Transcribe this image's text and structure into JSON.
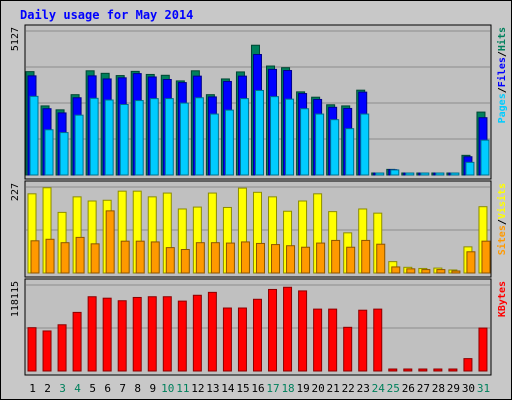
{
  "chart_data": {
    "type": "bar",
    "title": "Daily usage for May 2014",
    "categories": [
      "1",
      "2",
      "3",
      "4",
      "5",
      "6",
      "7",
      "8",
      "9",
      "10",
      "11",
      "12",
      "13",
      "14",
      "15",
      "16",
      "17",
      "18",
      "19",
      "20",
      "21",
      "22",
      "23",
      "24",
      "25",
      "26",
      "27",
      "28",
      "29",
      "30",
      "31"
    ],
    "weekend_days": [
      "3",
      "4",
      "10",
      "11",
      "17",
      "18",
      "24",
      "25",
      "31"
    ],
    "panels": [
      {
        "id": "hits",
        "ytick": "5127",
        "ymax": 5127,
        "ylabel_parts": [
          "Pages",
          "Files",
          "Hits"
        ],
        "series": [
          {
            "name": "Hits",
            "color": "#00805c",
            "values": [
              3680,
              2460,
              2320,
              2860,
              3710,
              3620,
              3540,
              3690,
              3580,
              3550,
              3350,
              3710,
              2860,
              3420,
              3670,
              4620,
              3880,
              3820,
              2960,
              2770,
              2500,
              2460,
              3020,
              0,
              200,
              0,
              0,
              0,
              0,
              700,
              2240
            ]
          },
          {
            "name": "Files",
            "color": "#0000ff",
            "values": [
              3530,
              2360,
              2210,
              2750,
              3530,
              3420,
              3460,
              3610,
              3490,
              3400,
              3290,
              3520,
              2780,
              3330,
              3520,
              4290,
              3760,
              3720,
              2900,
              2690,
              2410,
              2370,
              2950,
              0,
              190,
              0,
              0,
              0,
              0,
              650,
              2040
            ]
          },
          {
            "name": "Pages",
            "color": "#00ccff",
            "values": [
              2800,
              1610,
              1510,
              2130,
              2730,
              2670,
              2510,
              2650,
              2720,
              2720,
              2560,
              2750,
              2170,
              2310,
              2720,
              3010,
              2790,
              2700,
              2360,
              2170,
              1970,
              1650,
              2170,
              0,
              180,
              0,
              0,
              0,
              0,
              450,
              1240
            ]
          }
        ]
      },
      {
        "id": "visits",
        "ytick": "227",
        "ymax": 227,
        "ylabel_parts": [
          "Sites",
          "Visits"
        ],
        "series": [
          {
            "name": "Visits",
            "color": "#ffff00",
            "values": [
              209,
              225,
              160,
              201,
              190,
              192,
              216,
              216,
              201,
              211,
              169,
              174,
              211,
              173,
              224,
              213,
              201,
              163,
              190,
              209,
              162,
              106,
              169,
              158,
              30,
              15,
              12,
              13,
              8,
              69,
              175
            ]
          },
          {
            "name": "Sites",
            "color": "#ff9900",
            "values": [
              85,
              89,
              80,
              94,
              77,
              164,
              84,
              84,
              82,
              67,
              62,
              80,
              80,
              79,
              82,
              78,
              75,
              72,
              68,
              79,
              86,
              68,
              86,
              76,
              16,
              11,
              9,
              9,
              3,
              56,
              84
            ]
          }
        ]
      },
      {
        "id": "kbytes",
        "ytick": "118115",
        "ymax": 118115,
        "ylabel_parts": [
          "KBytes"
        ],
        "series": [
          {
            "name": "KBytes",
            "color": "#ff0000",
            "values": [
              59500,
              55000,
              63500,
              80500,
              102000,
              100000,
              96500,
              101000,
              102000,
              102000,
              96000,
              104000,
              108000,
              86500,
              86500,
              98500,
              112000,
              115000,
              110000,
              85000,
              85000,
              60000,
              83500,
              85000,
              1500,
              0,
              0,
              0,
              0,
              17000,
              59000
            ]
          }
        ]
      }
    ]
  },
  "colors": {
    "background": "#c8c8c8",
    "plot_bg": "#c0c0c0",
    "title_color": "#0000ff",
    "weekday_label": "#000000",
    "weekend_label": "#00805c",
    "border": "#000000"
  }
}
